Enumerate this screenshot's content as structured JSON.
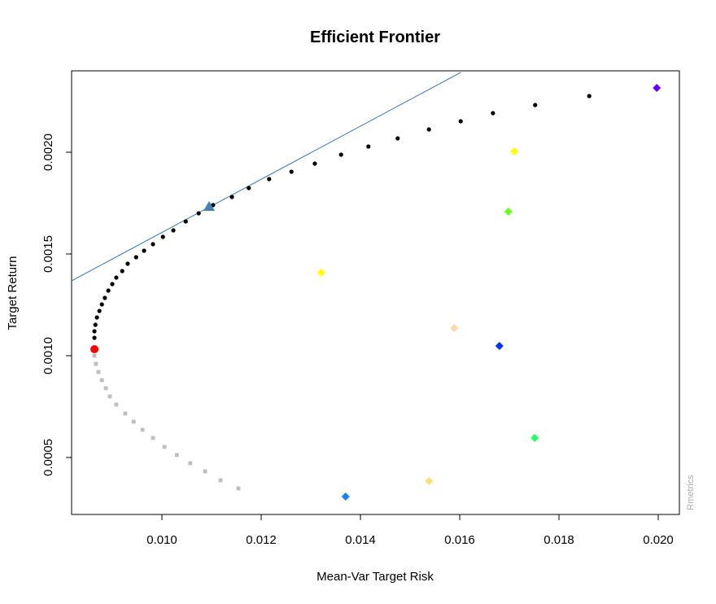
{
  "chart_data": {
    "type": "scatter",
    "title": "Efficient Frontier",
    "x_label": "Mean-Var Target Risk",
    "y_label": "Target Return",
    "watermark": "Rmetrics",
    "xlim": [
      0.00818,
      0.020426
    ],
    "ylim": [
      0.00022,
      0.0024
    ],
    "xticks": [
      {
        "value": 0.01,
        "label": "0.010"
      },
      {
        "value": 0.012,
        "label": "0.012"
      },
      {
        "value": 0.014,
        "label": "0.014"
      },
      {
        "value": 0.016,
        "label": "0.016"
      },
      {
        "value": 0.018,
        "label": "0.018"
      },
      {
        "value": 0.02,
        "label": "0.020"
      }
    ],
    "yticks": [
      {
        "value": 0.0005,
        "label": "0.0005"
      },
      {
        "value": 0.001,
        "label": "0.0010"
      },
      {
        "value": 0.0015,
        "label": "0.0015"
      },
      {
        "value": 0.002,
        "label": "0.0020"
      }
    ],
    "series": [
      {
        "mode": "line",
        "color": "#3b7ab8",
        "x": [
          0.00818,
          0.01602
        ],
        "values": [
          0.001368,
          0.002392
        ]
      },
      {
        "mode": "points",
        "marker": "circle",
        "color": "#000000",
        "x": [
          0.00864,
          0.00864,
          0.00866,
          0.00869,
          0.00874,
          0.00879,
          0.00885,
          0.00892,
          0.009,
          0.00908,
          0.0092,
          0.00931,
          0.00948,
          0.00964,
          0.00982,
          0.01002,
          0.01023,
          0.01048,
          0.01074,
          0.01103,
          0.01141,
          0.01175,
          0.01216,
          0.01261,
          0.01308,
          0.01361,
          0.01416,
          0.01475,
          0.01538,
          0.01602,
          0.01667,
          0.01752,
          0.01861
        ],
        "values": [
          0.001088,
          0.00112,
          0.001152,
          0.001188,
          0.00122,
          0.001252,
          0.001284,
          0.00132,
          0.001352,
          0.001384,
          0.001416,
          0.001452,
          0.001484,
          0.001516,
          0.001548,
          0.001584,
          0.001616,
          0.00166,
          0.0017,
          0.00174,
          0.00178,
          0.001824,
          0.001868,
          0.001904,
          0.001944,
          0.001988,
          0.002028,
          0.002068,
          0.002112,
          0.002152,
          0.002192,
          0.002232,
          0.002276
        ]
      },
      {
        "mode": "points",
        "marker": "square",
        "color": "#bebebe",
        "x": [
          0.00864,
          0.00867,
          0.00872,
          0.00879,
          0.00887,
          0.00895,
          0.00908,
          0.00926,
          0.00943,
          0.00961,
          0.00982,
          0.01005,
          0.0103,
          0.01057,
          0.01087,
          0.01118,
          0.01154
        ],
        "values": [
          0.001,
          0.00096,
          0.00092,
          0.00088,
          0.00084,
          0.0008,
          0.00076,
          0.000716,
          0.000676,
          0.000636,
          0.000596,
          0.000552,
          0.000512,
          0.000472,
          0.000432,
          0.000388,
          0.000348
        ]
      },
      {
        "mode": "points",
        "marker": "bigcircle",
        "color": "#ff0000",
        "x": [
          0.00864
        ],
        "values": [
          0.001032
        ]
      },
      {
        "mode": "points",
        "marker": "triangle",
        "color": "#4682b4",
        "x": [
          0.01095
        ],
        "values": [
          0.001732
        ]
      },
      {
        "mode": "points",
        "marker": "diamond",
        "colors": [
          "#6a00ff",
          "#ffff00",
          "#66ff22",
          "#ffff00",
          "#ffd8a8",
          "#0033ff",
          "#22ff66",
          "#ffdd77",
          "#1a80ff"
        ],
        "x": [
          0.01997,
          0.0171,
          0.01698,
          0.01321,
          0.01589,
          0.0168,
          0.01751,
          0.01538,
          0.0137
        ],
        "values": [
          0.002316,
          0.002004,
          0.001708,
          0.001408,
          0.001136,
          0.001048,
          0.000596,
          0.000384,
          0.000308
        ]
      }
    ]
  }
}
